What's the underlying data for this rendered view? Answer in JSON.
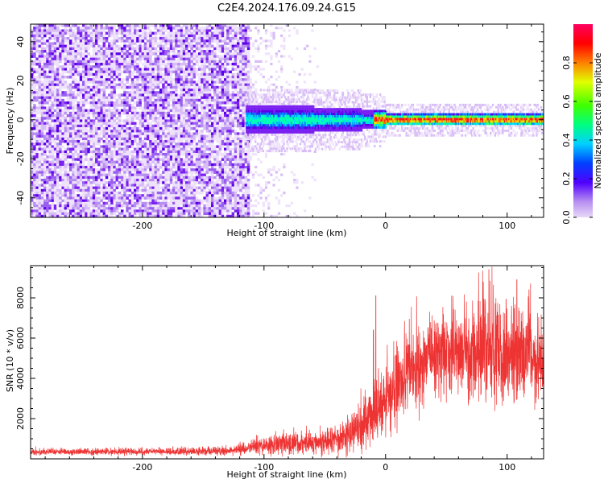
{
  "title": "C2E4.2024.176.09.24.G15",
  "colors": {
    "snr_line": "#ee3333",
    "spec_low": "#e3d3f5",
    "spec_mid": "#6a00e0",
    "axis": "#000000"
  },
  "chart_data": [
    {
      "type": "heatmap",
      "title": "C2E4.2024.176.09.24.G15",
      "xlabel": "Height of straight line (km)",
      "ylabel": "Frequency (Hz)",
      "xlim": [
        -292,
        130
      ],
      "ylim": [
        -50,
        49
      ],
      "xticks": [
        -200,
        -100,
        0,
        100
      ],
      "yticks": [
        -40,
        -20,
        0,
        20,
        40
      ],
      "grid": false,
      "description_values": {
        "noise_region_x": [
          -292,
          -112
        ],
        "signal_band_center_hz": 0,
        "signal_band_halfwidth_hz": [
          6,
          3
        ]
      },
      "colorbar": {
        "label": "Normalized spectral amplitude",
        "range": [
          0.0,
          1.0
        ],
        "ticks": [
          0.0,
          0.2,
          0.4,
          0.6,
          0.8
        ],
        "colormap": "gist_rainbow_r"
      }
    },
    {
      "type": "line",
      "xlabel": "Height of straight line (km)",
      "ylabel": "SNR (10 * v/v)",
      "xlim": [
        -292,
        130
      ],
      "ylim": [
        0,
        9600
      ],
      "xticks": [
        -200,
        -100,
        0,
        100
      ],
      "yticks": [
        2000,
        4000,
        6000,
        8000
      ],
      "grid": false,
      "series": [
        {
          "envelope_x": [
            -292,
            -200,
            -130,
            -115,
            -100,
            -80,
            -60,
            -40,
            -20,
            -10,
            0,
            10,
            20,
            30,
            40,
            50,
            60,
            70,
            80,
            90,
            100,
            110,
            120,
            130
          ],
          "envelope_mean": [
            350,
            350,
            380,
            500,
            650,
            750,
            800,
            1000,
            1600,
            2200,
            3000,
            3700,
            4300,
            4800,
            5200,
            5300,
            5200,
            5100,
            5300,
            5300,
            5200,
            5000,
            4800,
            4700
          ],
          "envelope_spread": [
            150,
            150,
            200,
            300,
            450,
            550,
            550,
            700,
            1100,
            1600,
            1700,
            1800,
            1900,
            2000,
            2100,
            2200,
            2300,
            2400,
            2500,
            2500,
            2400,
            2300,
            2200,
            2100
          ],
          "peaks": [
            {
              "x": -8,
              "y": 8100
            },
            {
              "x": -10,
              "y": 6400
            },
            {
              "x": 85,
              "y": 9400
            },
            {
              "x": 108,
              "y": 8900
            },
            {
              "x": 118,
              "y": 8400
            }
          ]
        }
      ]
    }
  ]
}
